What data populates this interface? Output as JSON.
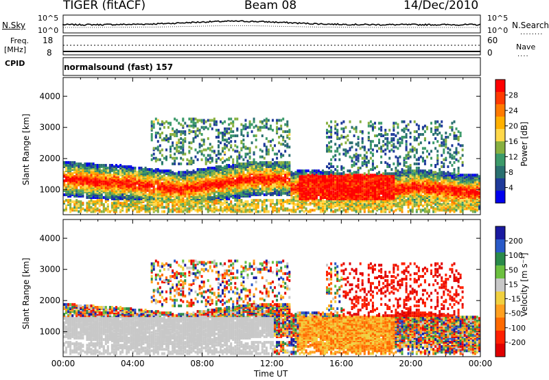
{
  "header": {
    "radar": "TIGER (fitACF)",
    "beam": "Beam 08",
    "date": "14/Dec/2010"
  },
  "top_panels": {
    "nsky_label": "N.Sky",
    "nsky_ticks": [
      "10^5",
      "10^0"
    ],
    "nsearch_label": "N.Search",
    "nsearch_ticks": [
      "10^5",
      "10^0"
    ],
    "freq_label_1": "Freq.",
    "freq_label_2": "[MHz]",
    "freq_ticks": [
      "18",
      "8"
    ],
    "nave_label": "Nave",
    "nave_ticks": [
      "60",
      "0"
    ],
    "cpid_label": "CPID",
    "cpid_text": "normalsound (fast) 157"
  },
  "chart_data": [
    {
      "type": "heatmap",
      "panel": "power",
      "ylabel": "Slant Range [km]",
      "yticks": [
        1000,
        2000,
        3000,
        4000
      ],
      "ylim": [
        200,
        4600
      ],
      "xticks": [
        "00:00",
        "04:00",
        "08:00",
        "12:00",
        "16:00",
        "20:00",
        "00:00"
      ],
      "xlim_hours": [
        0,
        24
      ],
      "colorbar": {
        "label": "Power [dB]",
        "ticks": [
          "28",
          "24",
          "20",
          "16",
          "12",
          "8",
          "4"
        ],
        "colors": [
          "#ff0000",
          "#ff3a00",
          "#ff7a00",
          "#ffb000",
          "#ffd84a",
          "#88b040",
          "#3c9a6a",
          "#2a7070",
          "#1f3a9a",
          "#0000ee"
        ]
      }
    },
    {
      "type": "heatmap",
      "panel": "velocity",
      "ylabel": "Slant Range [km]",
      "yticks": [
        1000,
        2000,
        3000,
        4000
      ],
      "ylim": [
        200,
        4600
      ],
      "xticks": [
        "00:00",
        "04:00",
        "08:00",
        "12:00",
        "16:00",
        "20:00",
        "00:00"
      ],
      "xlim_hours": [
        0,
        24
      ],
      "xlabel": "Time UT",
      "colorbar": {
        "label": "Velocity [m s⁻¹]",
        "ticks": [
          "200",
          "100",
          "50",
          "15",
          "-15",
          "-50",
          "-100",
          "-200"
        ],
        "colors": [
          "#1a1aa0",
          "#2a5ac8",
          "#2a8a4a",
          "#6cc040",
          "#c8c8c8",
          "#f0d040",
          "#ffa020",
          "#ff6a00",
          "#ff2000",
          "#e00000"
        ]
      }
    }
  ]
}
